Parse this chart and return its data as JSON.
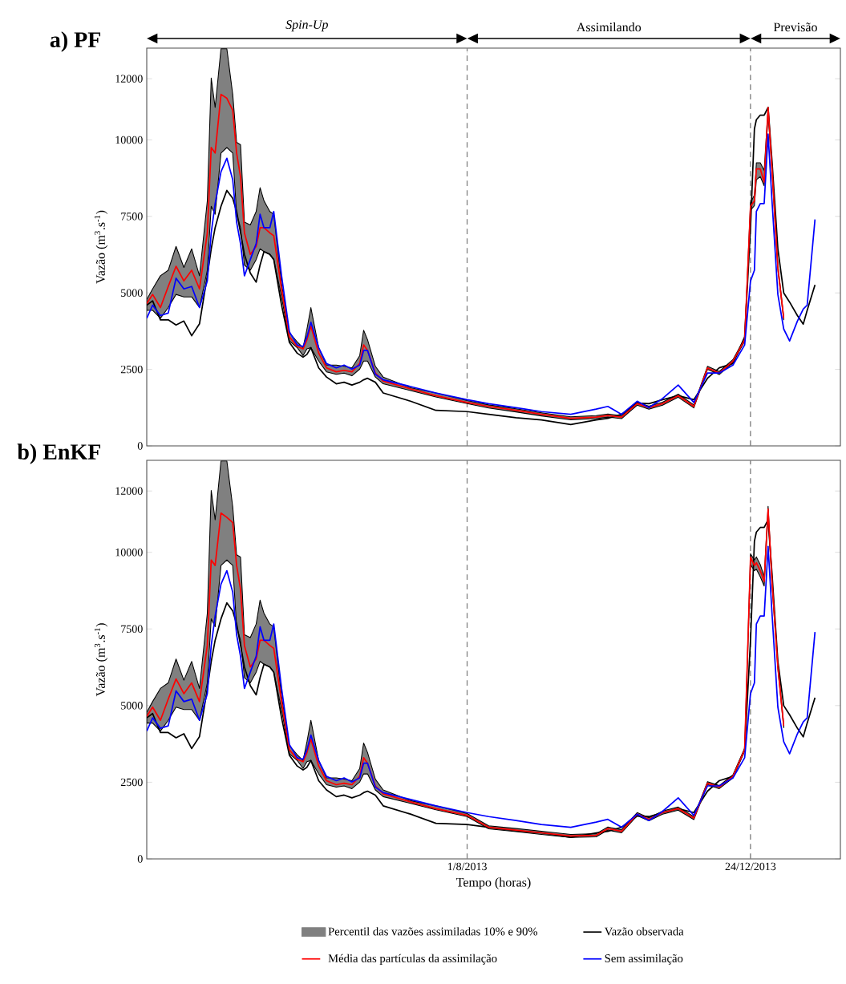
{
  "chart_data": [
    {
      "type": "line",
      "title": "a) PF",
      "ylabel": "Vazão (m$^{3}$.s$^{-1}$)",
      "annotations": [
        "*Spin*-*Up*",
        "Assimilando",
        "Previsão"
      ],
      "x": [
        "2013-02-18",
        "2013-02-21",
        "2013-02-25",
        "2013-03-01",
        "2013-03-05",
        "2013-03-09",
        "2013-03-13",
        "2013-03-17",
        "2013-03-21",
        "2013-03-23",
        "2013-03-25",
        "2013-03-28",
        "2013-03-31",
        "2013-04-03",
        "2013-04-05",
        "2013-04-07",
        "2013-04-09",
        "2013-04-12",
        "2013-04-15",
        "2013-04-17",
        "2013-04-19",
        "2013-04-22",
        "2013-04-24",
        "2013-04-28",
        "2013-05-02",
        "2013-05-06",
        "2013-05-09",
        "2013-05-11",
        "2013-05-13",
        "2013-05-17",
        "2013-05-21",
        "2013-05-26",
        "2013-05-30",
        "2013-06-03",
        "2013-06-07",
        "2013-06-09",
        "2013-06-11",
        "2013-06-15",
        "2013-06-19",
        "2013-07-03",
        "2013-07-16",
        "2013-08-01",
        "2013-08-12",
        "2013-08-26",
        "2013-09-08",
        "2013-09-23",
        "2013-10-06",
        "2013-10-12",
        "2013-10-19",
        "2013-10-27",
        "2013-11-02",
        "2013-11-09",
        "2013-11-17",
        "2013-11-25",
        "2013-12-02",
        "2013-12-08",
        "2013-12-15",
        "2013-12-21",
        "2013-12-24",
        "2013-12-26",
        "2013-12-27",
        "2013-12-29",
        "2013-12-31",
        "2014-01-02",
        "2014-01-04",
        "2014-01-07",
        "2014-01-10",
        "2014-01-13",
        "2014-01-17",
        "2014-01-20",
        "2014-01-22",
        "2014-01-26"
      ],
      "xlim": [
        "2013-02-18",
        "2014-02-08"
      ],
      "xticks": [
        {
          "value": "2013-08-01",
          "label": null
        },
        {
          "value": "2013-12-24",
          "label": null
        }
      ],
      "ylim": [
        0,
        13000
      ],
      "yticks": [
        0,
        2500,
        5000,
        7500,
        10000,
        12000
      ],
      "tick_labels": "y",
      "ref_lines": [
        {
          "axis": "x",
          "value": "2013-08-01",
          "color": "#808080",
          "line_style": "dashed"
        },
        {
          "axis": "x",
          "value": "2013-12-24",
          "color": "#808080",
          "line_style": "dashed"
        }
      ],
      "series": [
        {
          "color": "#000000",
          "values": [
            4600,
            4740,
            4120,
            4120,
            3950,
            4080,
            3600,
            3990,
            5560,
            6440,
            7130,
            7830,
            8350,
            8090,
            7660,
            6960,
            6260,
            5650,
            5350,
            5910,
            6350,
            6260,
            6090,
            4600,
            3380,
            3030,
            2900,
            2990,
            3210,
            2550,
            2250,
            2030,
            2080,
            1990,
            2080,
            2160,
            2210,
            2080,
            1730,
            1460,
            1160,
            1120,
            1030,
            920,
            850,
            700,
            850,
            900,
            1030,
            1400,
            1380,
            1510,
            1640,
            1510,
            2210,
            2550,
            2690,
            3560,
            7130,
            10360,
            10660,
            10810,
            10810,
            11060,
            9310,
            6440,
            5000,
            4700,
            4260,
            3980,
            4430,
            5260
          ]
        },
        {
          "color": "#ff0000",
          "values": [
            4650,
            4950,
            4520,
            5210,
            5870,
            5390,
            5740,
            5130,
            6960,
            9750,
            9570,
            11490,
            11360,
            10970,
            9570,
            8790,
            6960,
            6260,
            6520,
            7130,
            7130,
            6960,
            6870,
            5130,
            3560,
            3250,
            3170,
            3470,
            3910,
            3030,
            2550,
            2420,
            2470,
            2420,
            2700,
            3300,
            3120,
            2380,
            2120,
            1860,
            1640,
            1420,
            1290,
            1160,
            1030,
            900,
            940,
            990,
            940,
            1380,
            1250,
            1380,
            1640,
            1290,
            2550,
            2380,
            2770,
            3470,
            7830,
            8010,
            9050,
            9050,
            8620,
            11060,
            9050,
            5830,
            4170,
            null,
            null,
            null,
            null,
            null
          ],
          "upper": [
            4780,
            5130,
            5560,
            5740,
            6520,
            5830,
            6440,
            5560,
            8010,
            12020,
            11060,
            12980,
            12980,
            11490,
            9920,
            9840,
            7310,
            7220,
            7660,
            8440,
            8010,
            7660,
            7570,
            5300,
            3700,
            3400,
            3210,
            3820,
            4520,
            3210,
            2640,
            2640,
            2600,
            2550,
            2950,
            3780,
            3470,
            2600,
            2250,
            1900,
            1730,
            1480,
            1340,
            1210,
            1080,
            950,
            990,
            1040,
            990,
            1430,
            1300,
            1430,
            1690,
            1340,
            2600,
            2430,
            2820,
            3520,
            7950,
            8200,
            9250,
            9250,
            9000,
            11060,
            9150,
            5900,
            4220,
            null,
            null,
            null,
            null,
            null
          ],
          "lower": [
            4430,
            4430,
            4170,
            4520,
            4950,
            4870,
            4870,
            4520,
            5740,
            7830,
            7570,
            9570,
            9750,
            9570,
            7570,
            7130,
            5910,
            5740,
            6090,
            6440,
            6350,
            6260,
            6090,
            4870,
            3430,
            3210,
            2950,
            3170,
            3210,
            2770,
            2420,
            2340,
            2380,
            2290,
            2510,
            2770,
            2770,
            2250,
            2030,
            1810,
            1600,
            1380,
            1240,
            1110,
            980,
            850,
            890,
            940,
            890,
            1330,
            1200,
            1330,
            1590,
            1240,
            2500,
            2330,
            2720,
            3420,
            7700,
            7850,
            8700,
            8800,
            8500,
            10900,
            8950,
            5750,
            4120,
            null,
            null,
            null,
            null,
            null
          ]
        },
        {
          "color": "#0000ff",
          "values": [
            4170,
            4600,
            4260,
            4340,
            5480,
            5130,
            5210,
            4520,
            5390,
            6960,
            7920,
            8960,
            9400,
            8700,
            7310,
            6610,
            5560,
            6090,
            6610,
            7570,
            7130,
            7130,
            7660,
            5560,
            3730,
            3300,
            3250,
            3560,
            4040,
            3210,
            2690,
            2550,
            2640,
            2510,
            2640,
            3120,
            3120,
            2340,
            2160,
            1940,
            1730,
            1510,
            1380,
            1250,
            1120,
            1030,
            1200,
            1290,
            1030,
            1460,
            1250,
            1550,
            1990,
            1420,
            2380,
            2380,
            2640,
            3300,
            5390,
            5740,
            7660,
            7920,
            7920,
            10190,
            8010,
            4950,
            3820,
            3430,
            4080,
            4470,
            4600,
            7400
          ]
        }
      ]
    },
    {
      "type": "line",
      "title": "b) EnKF",
      "xlabel": "Tempo (horas)",
      "ylabel": "Vazão (m$^{3}$.s$^{-1}$)",
      "legend": "bottom",
      "annotations": [
        "Percentil das vazões assimiladas 10% e 90%"
      ],
      "x": [
        "2013-02-18",
        "2013-02-21",
        "2013-02-25",
        "2013-03-01",
        "2013-03-05",
        "2013-03-09",
        "2013-03-13",
        "2013-03-17",
        "2013-03-21",
        "2013-03-23",
        "2013-03-25",
        "2013-03-28",
        "2013-03-31",
        "2013-04-03",
        "2013-04-05",
        "2013-04-07",
        "2013-04-09",
        "2013-04-12",
        "2013-04-15",
        "2013-04-17",
        "2013-04-19",
        "2013-04-22",
        "2013-04-24",
        "2013-04-28",
        "2013-05-02",
        "2013-05-06",
        "2013-05-09",
        "2013-05-11",
        "2013-05-13",
        "2013-05-17",
        "2013-05-21",
        "2013-05-26",
        "2013-05-30",
        "2013-06-03",
        "2013-06-07",
        "2013-06-09",
        "2013-06-11",
        "2013-06-15",
        "2013-06-19",
        "2013-07-03",
        "2013-07-16",
        "2013-08-01",
        "2013-08-12",
        "2013-08-26",
        "2013-09-08",
        "2013-09-23",
        "2013-10-06",
        "2013-10-12",
        "2013-10-19",
        "2013-10-27",
        "2013-11-02",
        "2013-11-09",
        "2013-11-17",
        "2013-11-25",
        "2013-12-02",
        "2013-12-08",
        "2013-12-15",
        "2013-12-21",
        "2013-12-24",
        "2013-12-26",
        "2013-12-27",
        "2013-12-29",
        "2013-12-31",
        "2014-01-02",
        "2014-01-04",
        "2014-01-07",
        "2014-01-10",
        "2014-01-13",
        "2014-01-17",
        "2014-01-20",
        "2014-01-22",
        "2014-01-26"
      ],
      "xlim": [
        "2013-02-18",
        "2014-02-08"
      ],
      "xticks": [
        {
          "value": "2013-08-01",
          "label": "1/8/2013"
        },
        {
          "value": "2013-12-24",
          "label": "24/12/2013"
        }
      ],
      "ylim": [
        0,
        13000
      ],
      "yticks": [
        0,
        2500,
        5000,
        7500,
        10000,
        12000
      ],
      "ref_lines": [
        {
          "axis": "x",
          "value": "2013-08-01",
          "color": "#808080",
          "line_style": "dashed"
        },
        {
          "axis": "x",
          "value": "2013-12-24",
          "color": "#808080",
          "line_style": "dashed"
        }
      ],
      "series": [
        {
          "name": "Vazão observada",
          "color": "#000000",
          "values": [
            4600,
            4740,
            4120,
            4120,
            3950,
            4080,
            3600,
            3990,
            5560,
            6440,
            7130,
            7830,
            8350,
            8090,
            7660,
            6960,
            6260,
            5650,
            5350,
            5910,
            6350,
            6260,
            6090,
            4600,
            3380,
            3030,
            2900,
            2990,
            3210,
            2550,
            2250,
            2030,
            2080,
            1990,
            2080,
            2160,
            2210,
            2080,
            1730,
            1460,
            1160,
            1120,
            1030,
            920,
            850,
            700,
            850,
            900,
            1030,
            1400,
            1380,
            1510,
            1640,
            1510,
            2210,
            2550,
            2690,
            3560,
            7130,
            10360,
            10660,
            10810,
            10810,
            11060,
            9310,
            6440,
            5000,
            4700,
            4260,
            3980,
            4430,
            5260
          ]
        },
        {
          "name": "Média das partículas da assimilação",
          "color": "#ff0000",
          "values": [
            4650,
            4950,
            4520,
            5210,
            5870,
            5390,
            5740,
            5130,
            6960,
            9750,
            9570,
            11280,
            11140,
            10970,
            9570,
            8790,
            6960,
            6260,
            6520,
            7130,
            7130,
            6960,
            6870,
            5130,
            3560,
            3250,
            3170,
            3470,
            3910,
            3030,
            2550,
            2420,
            2470,
            2420,
            2700,
            3300,
            3120,
            2380,
            2120,
            1860,
            1640,
            1420,
            1030,
            940,
            850,
            750,
            770,
            990,
            900,
            1460,
            1290,
            1510,
            1640,
            1330,
            2470,
            2340,
            2690,
            3560,
            9840,
            9570,
            9660,
            9400,
            9050,
            11410,
            9050,
            6260,
            4340,
            null,
            null,
            null,
            null,
            null
          ],
          "upper": [
            4780,
            5130,
            5560,
            5740,
            6520,
            5830,
            6440,
            5560,
            8010,
            12020,
            11060,
            12980,
            12980,
            11490,
            9920,
            9840,
            7310,
            7220,
            7660,
            8440,
            8010,
            7660,
            7570,
            5300,
            3700,
            3400,
            3210,
            3820,
            4520,
            3210,
            2640,
            2640,
            2600,
            2550,
            2950,
            3780,
            3470,
            2600,
            2250,
            1900,
            1730,
            1480,
            1080,
            990,
            900,
            800,
            820,
            1040,
            950,
            1510,
            1340,
            1560,
            1690,
            1380,
            2520,
            2390,
            2740,
            3610,
            9950,
            9750,
            9850,
            9600,
            9200,
            11500,
            9150,
            6330,
            4400,
            null,
            null,
            null,
            null,
            null
          ],
          "lower": [
            4430,
            4430,
            4170,
            4520,
            4950,
            4870,
            4870,
            4520,
            5740,
            7830,
            7570,
            9570,
            9750,
            9570,
            7570,
            7130,
            5910,
            5740,
            6090,
            6440,
            6350,
            6260,
            6090,
            4870,
            3430,
            3210,
            2950,
            3170,
            3210,
            2770,
            2420,
            2340,
            2380,
            2290,
            2510,
            2770,
            2770,
            2250,
            2030,
            1810,
            1600,
            1380,
            980,
            890,
            800,
            700,
            720,
            940,
            850,
            1410,
            1240,
            1460,
            1590,
            1280,
            2420,
            2290,
            2640,
            3510,
            9600,
            9400,
            9450,
            9200,
            8900,
            11300,
            8950,
            6200,
            4280,
            null,
            null,
            null,
            null,
            null
          ]
        },
        {
          "name": "Sem assimilação",
          "color": "#0000ff",
          "values": [
            4170,
            4600,
            4260,
            4340,
            5480,
            5130,
            5210,
            4520,
            5390,
            6960,
            7920,
            8960,
            9400,
            8700,
            7310,
            6610,
            5560,
            6090,
            6610,
            7570,
            7130,
            7130,
            7660,
            5560,
            3730,
            3300,
            3250,
            3560,
            4040,
            3210,
            2690,
            2550,
            2640,
            2510,
            2640,
            3120,
            3120,
            2340,
            2160,
            1940,
            1730,
            1510,
            1380,
            1250,
            1120,
            1030,
            1200,
            1290,
            1030,
            1460,
            1250,
            1550,
            1990,
            1420,
            2380,
            2380,
            2640,
            3300,
            5390,
            5740,
            7660,
            7920,
            7920,
            10190,
            8010,
            4950,
            3820,
            3430,
            4080,
            4470,
            4600,
            7400
          ]
        }
      ]
    }
  ]
}
